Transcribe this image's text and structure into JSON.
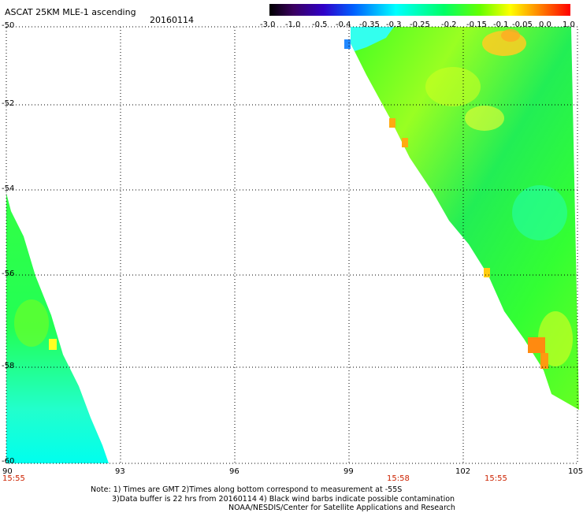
{
  "title": {
    "main": "ASCAT 25KM MLE-1 ascending",
    "date": "20160114"
  },
  "colorbar": {
    "labels": [
      "-3.0",
      "-1.0",
      "-0.5",
      "-0.4",
      "-0.35",
      "-0.3",
      "-0.25",
      "-0.2",
      "-0.15",
      "-0.1",
      "-0.05",
      "0.0",
      "1.0"
    ]
  },
  "axes": {
    "x_ticks": [
      "90",
      "93",
      "96",
      "99",
      "102",
      "105"
    ],
    "y_ticks": [
      "-50",
      "-52",
      "-54",
      "-56",
      "-58",
      "-60"
    ]
  },
  "times": [
    "15:55",
    "15:58",
    "15:55"
  ],
  "notes": {
    "line1": "Note: 1) Times are GMT 2)Times along bottom correspond to measurement at -55S",
    "line2": "3)Data buffer is 22 hrs from 20160114 4) Black wind barbs indicate possible contamination",
    "line3": "NOAA/NESDIS/Center for Satellite Applications and Research"
  },
  "map": {
    "lon_range": [
      90,
      105
    ],
    "lat_range": [
      -60,
      -50
    ],
    "gridlines": true
  }
}
